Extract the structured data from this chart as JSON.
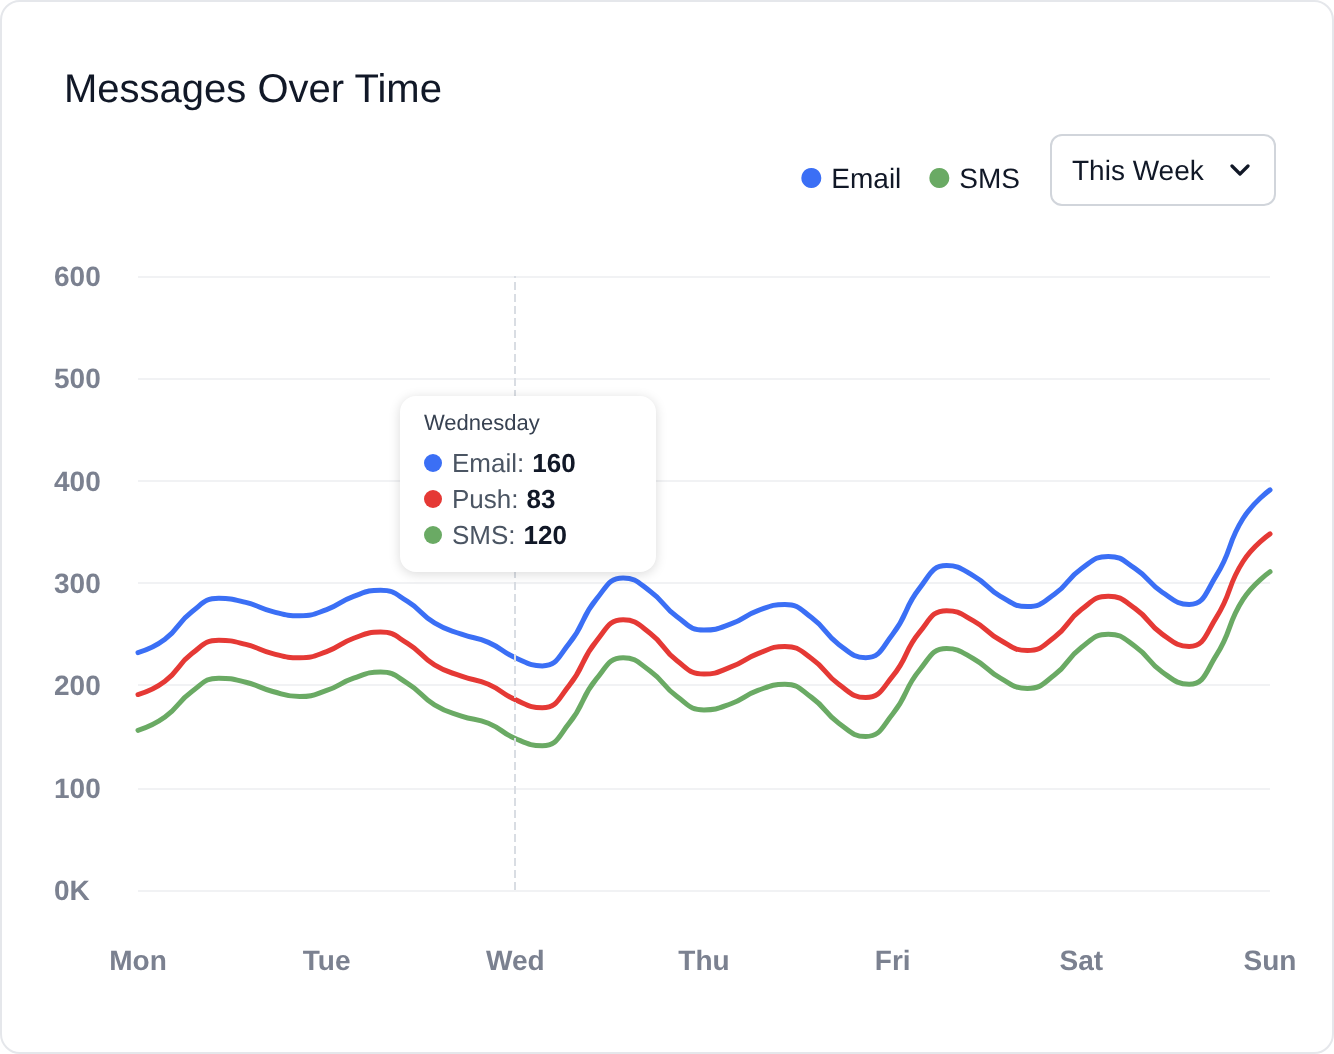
{
  "chart_data": {
    "type": "line",
    "title": "Messages Over Time",
    "categories": [
      "Mon",
      null,
      null,
      null,
      null,
      null,
      null,
      "Tue",
      null,
      null,
      null,
      null,
      null,
      null,
      "Wed",
      null,
      null,
      null,
      null,
      null,
      null,
      "Thu",
      null,
      null,
      null,
      null,
      null,
      null,
      "Fri",
      null,
      null,
      null,
      null,
      null,
      null,
      "Sat",
      null,
      null,
      null,
      null,
      null,
      null,
      "Sun"
    ],
    "ylim": [
      0,
      600
    ],
    "yticks": [
      {
        "value": 0,
        "label": "0K"
      },
      100,
      200,
      300,
      400,
      500,
      600
    ],
    "series": [
      {
        "name": "Email",
        "color": "#3b6ff5",
        "values": [
          232,
          245,
          272,
          285,
          281,
          272,
          268,
          274,
          287,
          293,
          282,
          261,
          250,
          242,
          227,
          219,
          241,
          284,
          305,
          292,
          267,
          254,
          260,
          273,
          279,
          266,
          240,
          227,
          250,
          295,
          317,
          307,
          287,
          277,
          289,
          314,
          326,
          314,
          291,
          279,
          307,
          363,
          391
        ]
      },
      {
        "color": "#e53935",
        "values": [
          191,
          204,
          231,
          244,
          240,
          231,
          227,
          233,
          246,
          252,
          241,
          220,
          209,
          201,
          186,
          178,
          200,
          243,
          264,
          251,
          224,
          211,
          218,
          231,
          238,
          226,
          201,
          188,
          209,
          252,
          273,
          263,
          244,
          234,
          247,
          274,
          287,
          275,
          250,
          238,
          266,
          321,
          348
        ]
      },
      {
        "name": "SMS",
        "color": "#6aaa64",
        "values": [
          156,
          169,
          194,
          207,
          203,
          194,
          189,
          195,
          207,
          213,
          202,
          181,
          170,
          163,
          148,
          141,
          163,
          206,
          227,
          214,
          189,
          176,
          182,
          195,
          201,
          188,
          163,
          150,
          172,
          215,
          236,
          226,
          207,
          197,
          210,
          237,
          250,
          238,
          213,
          201,
          229,
          284,
          311
        ]
      }
    ],
    "ref_lines": [
      {
        "axis": "x",
        "value": "Wed",
        "line_style": "dashed"
      }
    ],
    "annotations": [
      "Wednesday",
      "Email: 160",
      "Push: 83",
      "SMS: 120",
      "This Week"
    ],
    "grid": "y",
    "legend": "top right",
    "marker": "none",
    "line_style": "solid"
  }
}
